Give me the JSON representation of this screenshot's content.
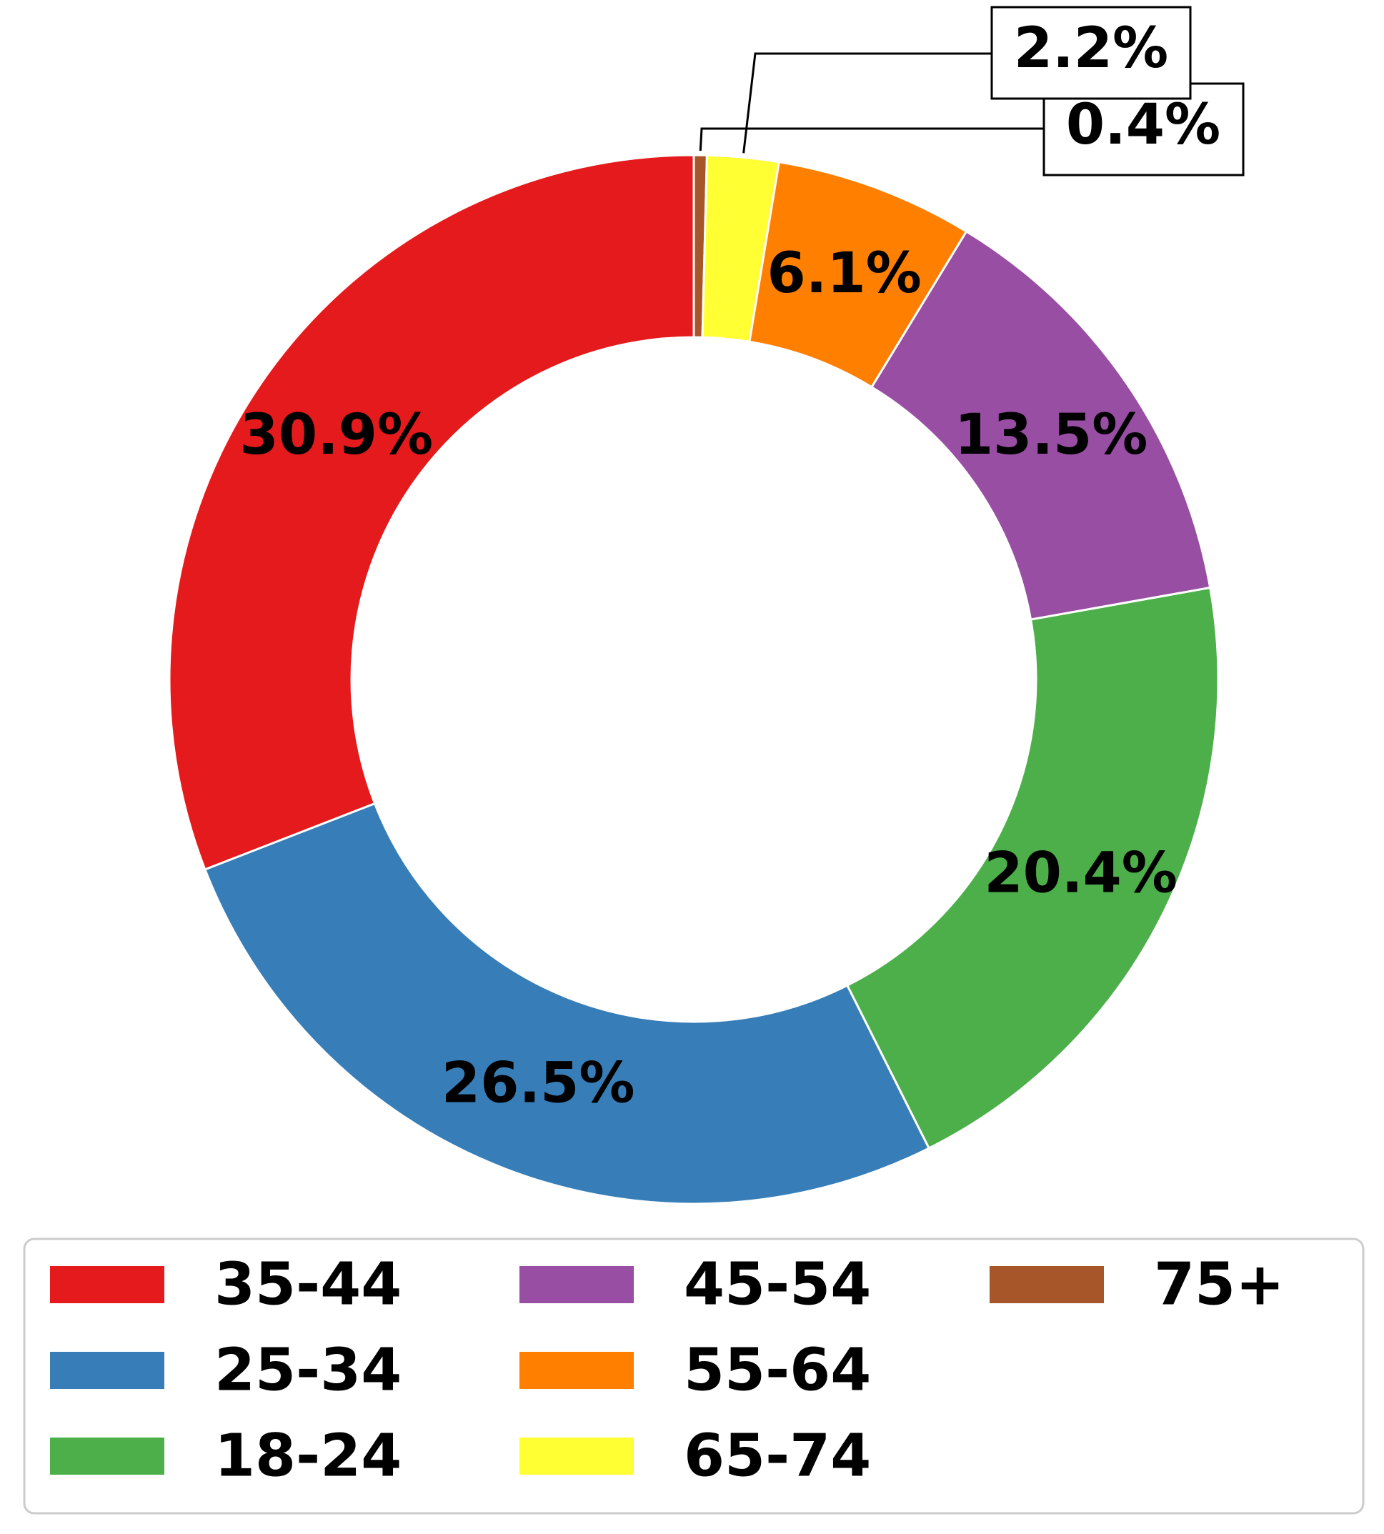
{
  "chart_data": {
    "type": "pie",
    "subtype": "donut",
    "title": "",
    "start": "top",
    "direction": "clockwise",
    "label_format": "percent, one decimal",
    "slices": [
      {
        "category": "75+",
        "value": 0.4,
        "label": "0.4%",
        "color": "#a65628",
        "label_placement": "outside-callout"
      },
      {
        "category": "65-74",
        "value": 2.2,
        "label": "2.2%",
        "color": "#ffff33",
        "label_placement": "outside-callout"
      },
      {
        "category": "55-64",
        "value": 6.1,
        "label": "6.1%",
        "color": "#ff7f00",
        "label_placement": "on-ring"
      },
      {
        "category": "45-54",
        "value": 13.5,
        "label": "13.5%",
        "color": "#984ea3",
        "label_placement": "on-ring"
      },
      {
        "category": "18-24",
        "value": 20.4,
        "label": "20.4%",
        "color": "#4daf4a",
        "label_placement": "on-ring"
      },
      {
        "category": "25-34",
        "value": 26.5,
        "label": "26.5%",
        "color": "#377eb8",
        "label_placement": "on-ring"
      },
      {
        "category": "35-44",
        "value": 30.9,
        "label": "30.9%",
        "color": "#e41a1c",
        "label_placement": "on-ring"
      }
    ],
    "legend": {
      "placement": "bottom",
      "columns": 3,
      "entries": [
        {
          "label": "35-44",
          "color": "#e41a1c"
        },
        {
          "label": "25-34",
          "color": "#377eb8"
        },
        {
          "label": "18-24",
          "color": "#4daf4a"
        },
        {
          "label": "45-54",
          "color": "#984ea3"
        },
        {
          "label": "55-64",
          "color": "#ff7f00"
        },
        {
          "label": "65-74",
          "color": "#ffff33"
        },
        {
          "label": "75+",
          "color": "#a65628"
        }
      ]
    }
  }
}
